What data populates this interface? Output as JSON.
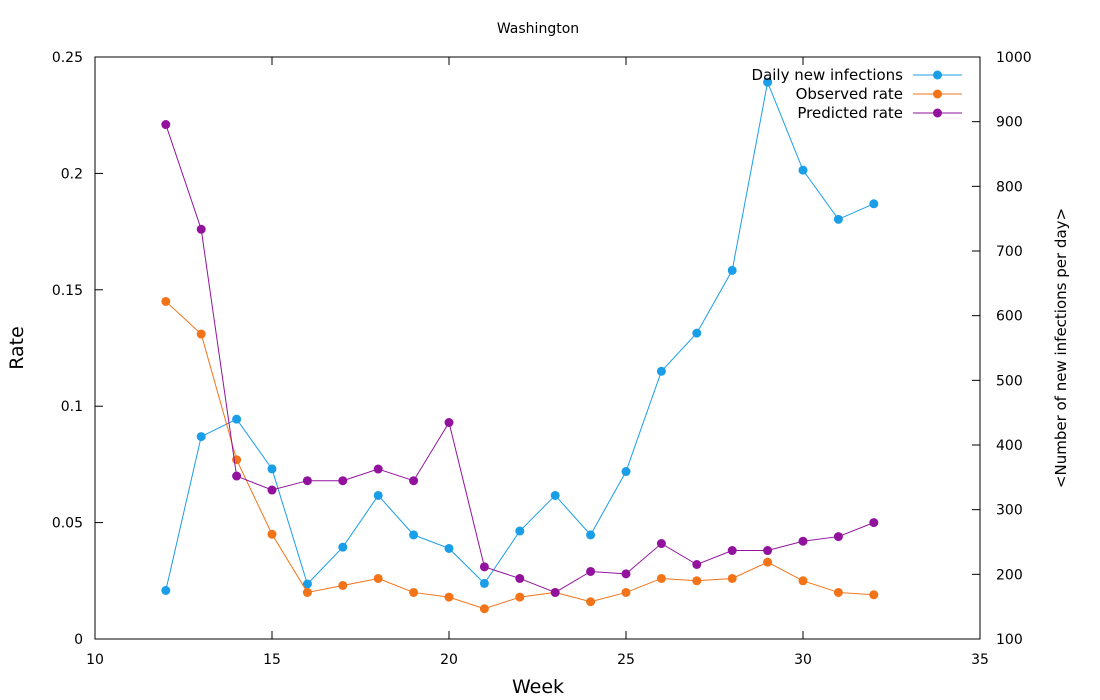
{
  "chart_data": {
    "type": "line",
    "title": "Washington",
    "xlabel": "Week",
    "ylabel": "Rate",
    "y2label": "<Number of new infections per day>",
    "xlim": [
      10,
      35
    ],
    "ylim": [
      0,
      0.25
    ],
    "y2lim": [
      100,
      1000
    ],
    "x_ticks": [
      "10",
      "15",
      "20",
      "25",
      "30",
      "35"
    ],
    "x_tick_values": [
      10,
      15,
      20,
      25,
      30,
      35
    ],
    "y_ticks": [
      "0",
      "0.05",
      "0.1",
      "0.15",
      "0.2",
      "0.25"
    ],
    "y_tick_values": [
      0,
      0.05,
      0.1,
      0.15,
      0.2,
      0.25
    ],
    "y2_ticks": [
      "100",
      "200",
      "300",
      "400",
      "500",
      "600",
      "700",
      "800",
      "900",
      "1000"
    ],
    "y2_tick_values": [
      100,
      200,
      300,
      400,
      500,
      600,
      700,
      800,
      900,
      1000
    ],
    "grid": false,
    "legend_position": "top-right",
    "x": [
      12,
      13,
      14,
      15,
      16,
      17,
      18,
      19,
      20,
      21,
      22,
      23,
      24,
      25,
      26,
      27,
      28,
      29,
      30,
      31,
      32
    ],
    "series": [
      {
        "name": "Daily new infections",
        "axis": "y2",
        "color": "#1a9ee8",
        "values": [
          175,
          413,
          440,
          363,
          185,
          242,
          322,
          261,
          240,
          186,
          267,
          322,
          261,
          359,
          514,
          573,
          670,
          961,
          825,
          749,
          773
        ]
      },
      {
        "name": "Observed rate",
        "axis": "y",
        "color": "#f27318",
        "values": [
          0.145,
          0.131,
          0.077,
          0.045,
          0.02,
          0.023,
          0.026,
          0.02,
          0.018,
          0.013,
          0.018,
          0.02,
          0.016,
          0.02,
          0.026,
          0.025,
          0.026,
          0.033,
          0.025,
          0.02,
          0.019
        ]
      },
      {
        "name": "Predicted rate",
        "axis": "y",
        "color": "#92129e",
        "values": [
          0.221,
          0.176,
          0.07,
          0.064,
          0.068,
          0.068,
          0.073,
          0.068,
          0.093,
          0.031,
          0.026,
          0.02,
          0.029,
          0.028,
          0.041,
          0.032,
          0.038,
          0.038,
          0.042,
          0.044,
          0.05
        ]
      }
    ]
  }
}
